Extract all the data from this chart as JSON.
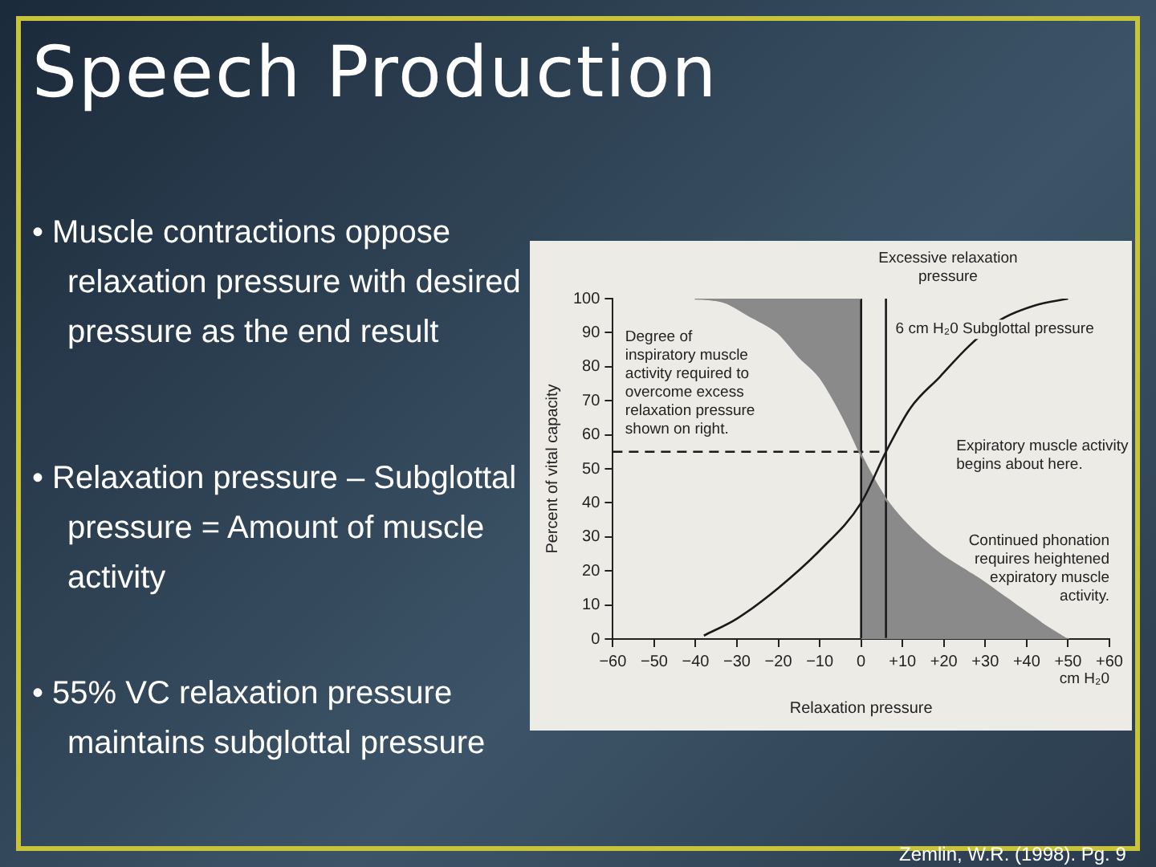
{
  "chart_data": {
    "type": "line",
    "title": "Speech Production",
    "xlabel": "Relaxation pressure",
    "ylabel": "Percent of vital capacity",
    "xlim": [
      -60,
      60
    ],
    "ylim": [
      0,
      100
    ],
    "xticks": [
      {
        "value": -60,
        "label": "−60"
      },
      {
        "value": -50,
        "label": "−50"
      },
      {
        "value": -40,
        "label": "−40"
      },
      {
        "value": -30,
        "label": "−30"
      },
      {
        "value": -20,
        "label": "−20"
      },
      {
        "value": -10,
        "label": "−10"
      },
      0,
      {
        "value": 10,
        "label": "+10"
      },
      {
        "value": 20,
        "label": "+20"
      },
      {
        "value": 30,
        "label": "+30"
      },
      {
        "value": 40,
        "label": "+40"
      },
      {
        "value": 50,
        "label": "+50"
      },
      {
        "value": 60,
        "label": "+60"
      }
    ],
    "yticks": [
      0,
      10,
      20,
      30,
      40,
      50,
      60,
      70,
      80,
      90,
      100
    ],
    "legend": false,
    "series": [
      {
        "type": "line",
        "color": "#1a1a1a",
        "x": [
          -38,
          -30,
          -20,
          -10,
          0,
          6,
          12,
          19,
          26,
          34,
          42,
          50
        ],
        "values": [
          1,
          6,
          15,
          26,
          40,
          55,
          68,
          77,
          86,
          94,
          98,
          100
        ]
      },
      {
        "type": "area",
        "color": "#8a8a8a",
        "x": [
          0,
          -40,
          -33,
          -27,
          -20,
          -15,
          -10,
          -6,
          -3,
          0,
          3,
          6,
          10,
          15,
          19,
          24,
          28,
          35,
          42,
          50,
          0
        ],
        "values": [
          100,
          100,
          99,
          95,
          90,
          83,
          77,
          69,
          62,
          54,
          47,
          41,
          35,
          29,
          25,
          21,
          18,
          12,
          6,
          0,
          0
        ]
      }
    ],
    "ref_lines": [
      {
        "axis": "x",
        "value": 0,
        "line_style": "solid"
      },
      {
        "axis": "x",
        "value": 6,
        "label": "6 cm H₂0 Subglottal pressure",
        "line_style": "solid"
      },
      {
        "axis": "y",
        "value": 55,
        "line_style": "dashed"
      }
    ],
    "annotations": [
      "• Muscle contractions oppose relaxation pressure with desired pressure as the end result",
      "• Relaxation pressure – Subglottal pressure = Amount of muscle activity",
      "• 55% VC relaxation pressure maintains subglottal pressure",
      "Zemlin, W.R. (1998). Pg. 9",
      "Excessive relaxation pressure",
      "Degree of inspiratory muscle activity required to overcome excess relaxation pressure shown on right.",
      "Expiratory muscle activity begins about here.",
      "Continued phonation requires heightened expiratory muscle activity.",
      "cm H₂0"
    ]
  }
}
